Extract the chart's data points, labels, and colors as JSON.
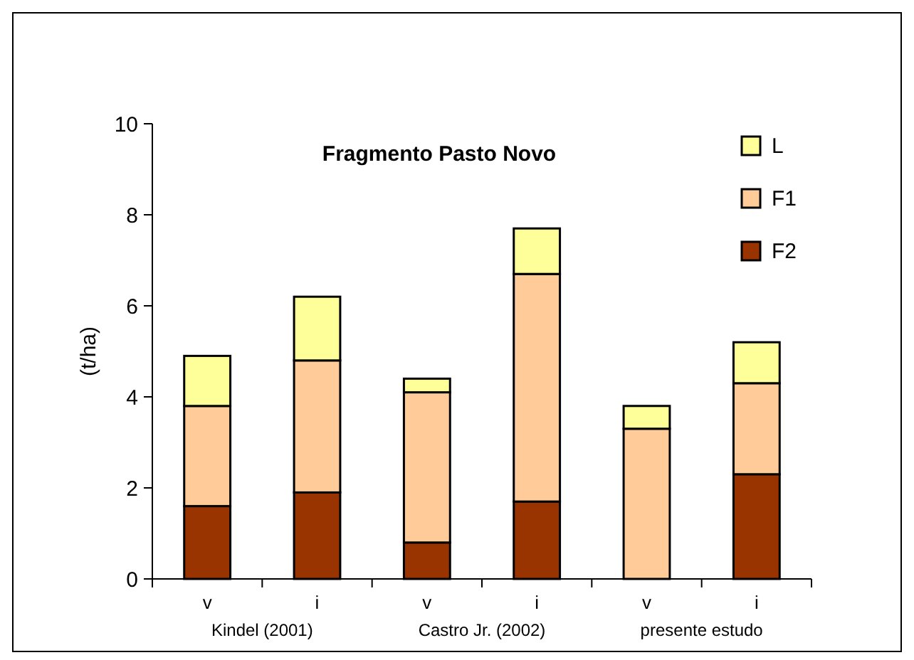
{
  "chart_data": {
    "type": "bar",
    "title": "Fragmento Pasto Novo",
    "ylabel": "(t/ha)",
    "categories": [
      "v",
      "i",
      "v",
      "i",
      "v",
      "i"
    ],
    "stacked": true,
    "series": [
      {
        "name": "F2",
        "color": "#993300",
        "values": [
          1.6,
          1.9,
          0.8,
          1.7,
          0,
          2.3
        ]
      },
      {
        "name": "F1",
        "color": "#ffcc99",
        "values": [
          2.2,
          2.9,
          3.3,
          5.0,
          3.3,
          2.0
        ]
      },
      {
        "name": "L",
        "color": "#ffff99",
        "values": [
          1.1,
          1.4,
          0.3,
          1.0,
          0.5,
          0.9
        ]
      }
    ],
    "ylim": [
      0,
      10
    ],
    "yticks": [
      0,
      2,
      4,
      6,
      8,
      10
    ],
    "grid": false,
    "legend": "top right",
    "annotations": [
      "Kindel (2001)",
      "Castro Jr. (2002)",
      "presente estudo"
    ]
  }
}
